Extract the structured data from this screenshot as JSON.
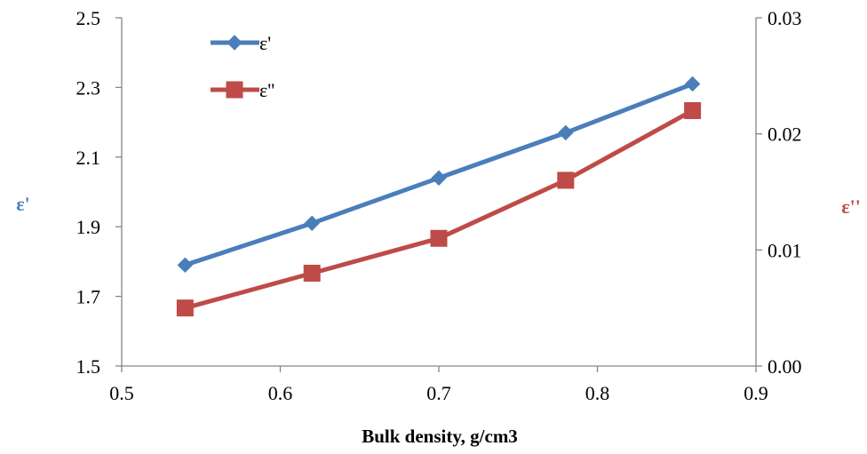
{
  "chart_data": {
    "type": "line",
    "title": "",
    "xlabel": "Bulk density, g/cm3",
    "ylabel_left": "ε'",
    "ylabel_right": "ε''",
    "x": [
      0.54,
      0.62,
      0.7,
      0.78,
      0.86
    ],
    "xlim": [
      0.5,
      0.9
    ],
    "x_ticks": [
      "0.5",
      "0.6",
      "0.7",
      "0.8",
      "0.9"
    ],
    "ylim_left": [
      1.5,
      2.5
    ],
    "y_ticks_left": [
      "1.5",
      "1.7",
      "1.9",
      "2.1",
      "2.3",
      "2.5"
    ],
    "ylim_right": [
      0.0,
      0.03
    ],
    "y_ticks_right": [
      "0.00",
      "0.01",
      "0.02",
      "0.03"
    ],
    "grid": false,
    "legend_position": "top-left",
    "series": [
      {
        "name": "ε'",
        "axis": "left",
        "marker": "diamond",
        "color": "#4a7ebb",
        "values": [
          1.79,
          1.91,
          2.04,
          2.17,
          2.31
        ]
      },
      {
        "name": "ε''",
        "axis": "right",
        "marker": "square",
        "color": "#be4b48",
        "values": [
          0.005,
          0.008,
          0.011,
          0.016,
          0.022
        ]
      }
    ]
  }
}
